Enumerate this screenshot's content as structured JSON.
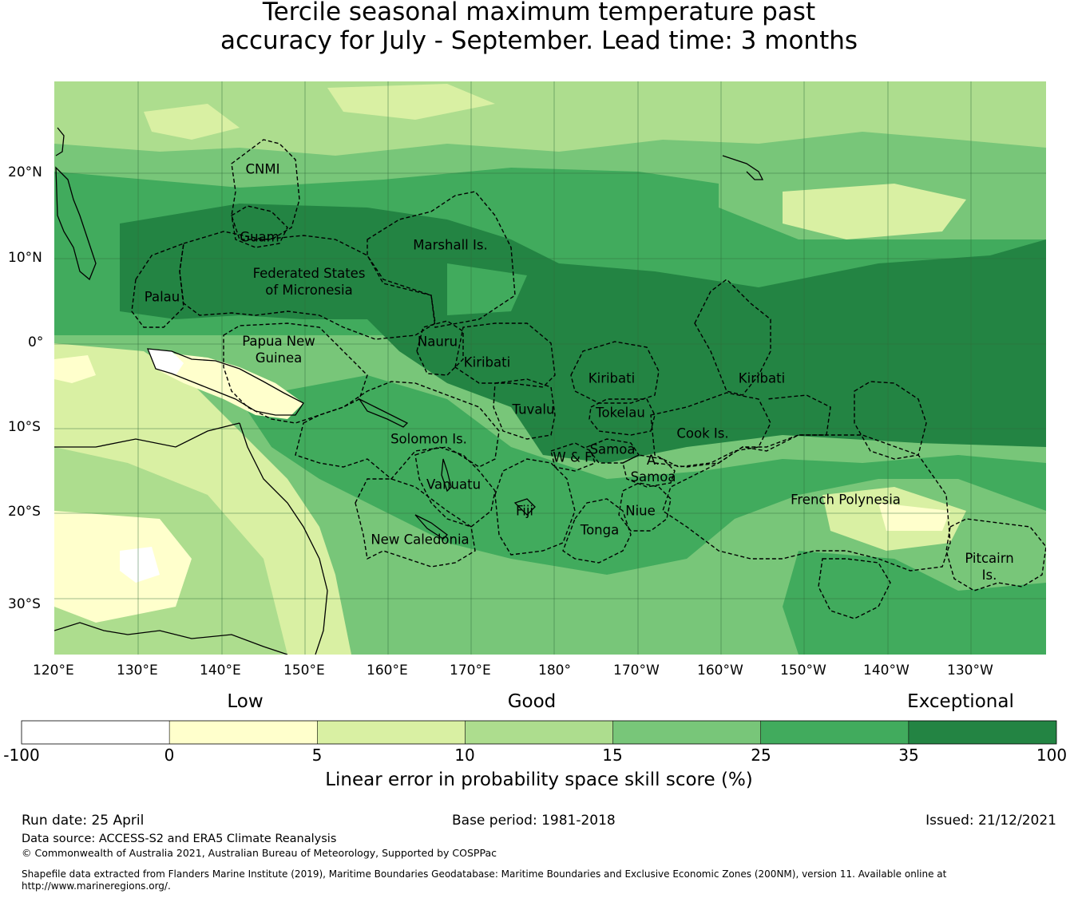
{
  "title": {
    "line1": "Tercile seasonal maximum temperature past",
    "line2": "accuracy for July - September. Lead time: 3 months"
  },
  "map": {
    "lat_labels": [
      "20°N",
      "10°N",
      "0°",
      "10°S",
      "20°S",
      "30°S"
    ],
    "lon_labels": [
      "120°E",
      "130°E",
      "140°E",
      "150°E",
      "160°E",
      "170°E",
      "180°",
      "170°W",
      "160°W",
      "150°W",
      "140°W",
      "130°W"
    ],
    "regions": [
      {
        "id": "cnmi",
        "text": "CNMI"
      },
      {
        "id": "guam",
        "text": "Guam"
      },
      {
        "id": "marshall",
        "text": "Marshall Is."
      },
      {
        "id": "fsm",
        "text": "Federated States\nof Micronesia"
      },
      {
        "id": "palau",
        "text": "Palau"
      },
      {
        "id": "png",
        "text": "Papua New\nGuinea"
      },
      {
        "id": "nauru",
        "text": "Nauru"
      },
      {
        "id": "kiribati-w",
        "text": "Kiribati"
      },
      {
        "id": "kiribati-c",
        "text": "Kiribati"
      },
      {
        "id": "kiribati-e",
        "text": "Kiribati"
      },
      {
        "id": "tuvalu",
        "text": "Tuvalu"
      },
      {
        "id": "tokelau",
        "text": "Tokelau"
      },
      {
        "id": "solomon",
        "text": "Solomon Is."
      },
      {
        "id": "samoa",
        "text": "Samoa"
      },
      {
        "id": "wf",
        "text": "W & F"
      },
      {
        "id": "asamoa",
        "text": "A.\nSamoa"
      },
      {
        "id": "cook",
        "text": "Cook Is."
      },
      {
        "id": "vanuatu",
        "text": "Vanuatu"
      },
      {
        "id": "fiji",
        "text": "Fiji"
      },
      {
        "id": "niue",
        "text": "Niue"
      },
      {
        "id": "tonga",
        "text": "Tonga"
      },
      {
        "id": "frpoly",
        "text": "French Polynesia"
      },
      {
        "id": "newcal",
        "text": "New Caledonia"
      },
      {
        "id": "pitcairn",
        "text": "Pitcairn\nIs."
      }
    ]
  },
  "legend": {
    "categories": [
      "Low",
      "Good",
      "Exceptional"
    ],
    "ticks": [
      "-100",
      "0",
      "5",
      "10",
      "15",
      "25",
      "35",
      "100"
    ],
    "colors": [
      "#ffffff",
      "#ffffcc",
      "#d9f0a3",
      "#addd8e",
      "#78c679",
      "#41ab5d",
      "#238443"
    ],
    "title": "Linear error in probability space skill score (%)"
  },
  "footer": {
    "run_date": "Run date: 25 April",
    "base_period": "Base period: 1981-2018",
    "issued": "Issued: 21/12/2021",
    "data_source": "Data source: ACCESS-S2 and ERA5 Climate Reanalysis",
    "copyright": "© Commonwealth of Australia 2021, Australian Bureau of Meteorology, Supported by COSPPac",
    "shapefile_line1": "Shapefile data extracted from Flanders Marine Institute (2019), Maritime Boundaries Geodatabase: Maritime Boundaries and Exclusive Economic Zones (200NM), version 11. Available online at",
    "shapefile_line2": "http://www.marineregions.org/."
  }
}
